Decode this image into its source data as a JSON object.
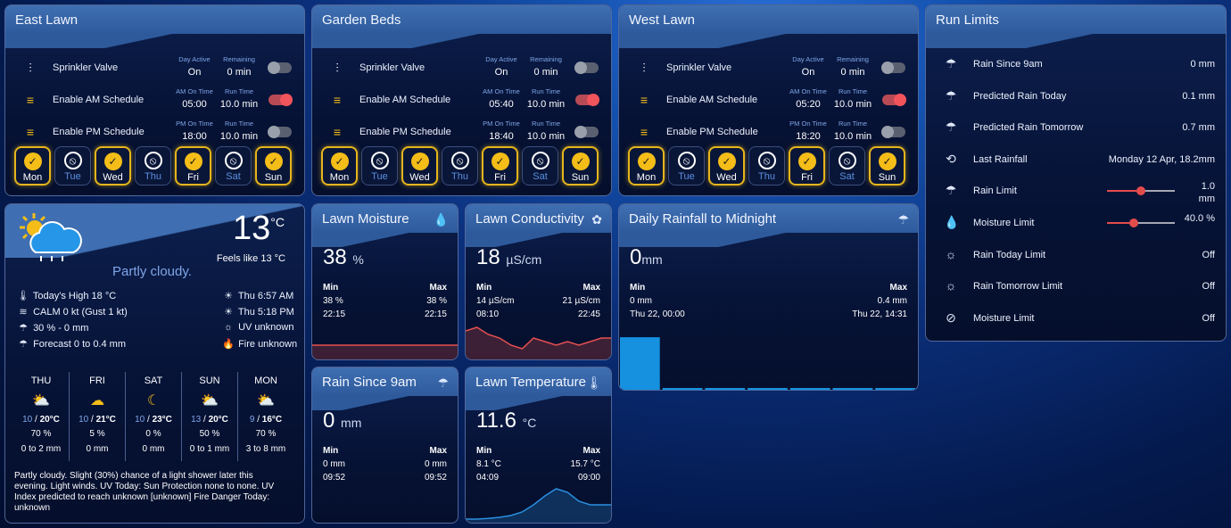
{
  "zones": [
    {
      "title": "East Lawn",
      "rows": [
        {
          "label": "Sprinkler Valve",
          "col1_title": "Day Active",
          "col1_value": "On",
          "col2_title": "Remaining",
          "col2_value": "0 min",
          "toggle": false
        },
        {
          "label": "Enable AM Schedule",
          "col1_title": "AM On Time",
          "col1_value": "05:00",
          "col2_title": "Run Time",
          "col2_value": "10.0 min",
          "toggle": true
        },
        {
          "label": "Enable PM Schedule",
          "col1_title": "PM On Time",
          "col1_value": "18:00",
          "col2_title": "Run Time",
          "col2_value": "10.0 min",
          "toggle": false
        }
      ],
      "days": [
        {
          "label": "Mon",
          "on": true
        },
        {
          "label": "Tue",
          "on": false
        },
        {
          "label": "Wed",
          "on": true
        },
        {
          "label": "Thu",
          "on": false
        },
        {
          "label": "Fri",
          "on": true
        },
        {
          "label": "Sat",
          "on": false
        },
        {
          "label": "Sun",
          "on": true
        }
      ]
    },
    {
      "title": "Garden Beds",
      "rows": [
        {
          "label": "Sprinkler Valve",
          "col1_title": "Day Active",
          "col1_value": "On",
          "col2_title": "Remaining",
          "col2_value": "0 min",
          "toggle": false
        },
        {
          "label": "Enable AM Schedule",
          "col1_title": "AM On Time",
          "col1_value": "05:40",
          "col2_title": "Run Time",
          "col2_value": "10.0 min",
          "toggle": true
        },
        {
          "label": "Enable PM Schedule",
          "col1_title": "PM On Time",
          "col1_value": "18:40",
          "col2_title": "Run Time",
          "col2_value": "10.0 min",
          "toggle": false
        }
      ],
      "days": [
        {
          "label": "Mon",
          "on": true
        },
        {
          "label": "Tue",
          "on": false
        },
        {
          "label": "Wed",
          "on": true
        },
        {
          "label": "Thu",
          "on": false
        },
        {
          "label": "Fri",
          "on": true
        },
        {
          "label": "Sat",
          "on": false
        },
        {
          "label": "Sun",
          "on": true
        }
      ]
    },
    {
      "title": "West Lawn",
      "rows": [
        {
          "label": "Sprinkler Valve",
          "col1_title": "Day Active",
          "col1_value": "On",
          "col2_title": "Remaining",
          "col2_value": "0 min",
          "toggle": false
        },
        {
          "label": "Enable AM Schedule",
          "col1_title": "AM On Time",
          "col1_value": "05:20",
          "col2_title": "Run Time",
          "col2_value": "10.0 min",
          "toggle": true
        },
        {
          "label": "Enable PM Schedule",
          "col1_title": "PM On Time",
          "col1_value": "18:20",
          "col2_title": "Run Time",
          "col2_value": "10.0 min",
          "toggle": false
        }
      ],
      "days": [
        {
          "label": "Mon",
          "on": true
        },
        {
          "label": "Tue",
          "on": false
        },
        {
          "label": "Wed",
          "on": true
        },
        {
          "label": "Thu",
          "on": false
        },
        {
          "label": "Fri",
          "on": true
        },
        {
          "label": "Sat",
          "on": false
        },
        {
          "label": "Sun",
          "on": true
        }
      ]
    }
  ],
  "run_limits": {
    "title": "Run Limits",
    "rows": [
      {
        "label": "Rain Since 9am",
        "value": "0 mm",
        "icon": "rain-icon"
      },
      {
        "label": "Predicted Rain Today",
        "value": "0.1 mm",
        "icon": "rain-icon"
      },
      {
        "label": "Predicted Rain Tomorrow",
        "value": "0.7 mm",
        "icon": "rain-icon"
      },
      {
        "label": "Last Rainfall",
        "value": "Monday 12 Apr, 18.2mm",
        "icon": "history-icon"
      },
      {
        "label": "Rain Limit",
        "value": "1.0 mm",
        "icon": "rain-icon",
        "slider": 0.5
      },
      {
        "label": "Moisture Limit",
        "value": "40.0 %",
        "icon": "water-drop-icon",
        "slider": 0.4
      },
      {
        "label": "Rain Today Limit",
        "value": "Off",
        "icon": "sun-icon"
      },
      {
        "label": "Rain Tomorrow Limit",
        "value": "Off",
        "icon": "sun-icon"
      },
      {
        "label": "Moisture Limit",
        "value": "Off",
        "icon": "water-off-icon"
      }
    ]
  },
  "weather": {
    "temp": "13",
    "temp_unit": "°C",
    "feels_like": "Feels like 13 °C",
    "condition": "Partly cloudy.",
    "left": [
      {
        "icon": "thermometer-icon",
        "text": "Today's High 18 °C"
      },
      {
        "icon": "wind-icon",
        "text": "CALM 0 kt (Gust 1 kt)"
      },
      {
        "icon": "rain-icon",
        "text": "30 % - 0 mm"
      },
      {
        "icon": "rain-icon",
        "text": "Forecast 0 to 0.4 mm"
      }
    ],
    "right": [
      {
        "icon": "sunrise-icon",
        "text": "Thu 6:57 AM"
      },
      {
        "icon": "sunset-icon",
        "text": "Thu 5:18 PM"
      },
      {
        "icon": "uv-icon",
        "text": "UV unknown"
      },
      {
        "icon": "fire-icon",
        "text": "Fire unknown"
      }
    ],
    "forecast": [
      {
        "day": "THU",
        "icon": "partly-cloudy-rain-icon",
        "lo": "10",
        "hi": "20°C",
        "pop": "70 %",
        "rain": "0 to 2 mm"
      },
      {
        "day": "FRI",
        "icon": "partly-cloudy-night-icon",
        "lo": "10",
        "hi": "21°C",
        "pop": "5 %",
        "rain": "0 mm"
      },
      {
        "day": "SAT",
        "icon": "moon-icon",
        "lo": "10",
        "hi": "23°C",
        "pop": "0 %",
        "rain": "0 mm"
      },
      {
        "day": "SUN",
        "icon": "partly-cloudy-rain-icon",
        "lo": "13",
        "hi": "20°C",
        "pop": "50 %",
        "rain": "0 to 1 mm"
      },
      {
        "day": "MON",
        "icon": "partly-cloudy-rain-icon",
        "lo": "9",
        "hi": "16°C",
        "pop": "70 %",
        "rain": "3 to 8 mm"
      }
    ],
    "summary": "Partly cloudy. Slight (30%) chance of a light shower later this evening. Light winds. UV Today: Sun Protection none to none. UV Index predicted to reach unknown [unknown] Fire Danger Today: unknown"
  },
  "sensors": [
    {
      "title": "Lawn Moisture",
      "icon": "water-drop-icon",
      "value": "38",
      "unit": "%",
      "min_label": "Min",
      "max_label": "Max",
      "min_value": "38 %",
      "max_value": "38 %",
      "min_time": "22:15",
      "max_time": "22:15",
      "color": "#e55050",
      "spark": [
        0.4,
        0.4,
        0.4,
        0.4,
        0.4,
        0.4,
        0.4,
        0.4,
        0.4,
        0.4
      ]
    },
    {
      "title": "Lawn Conductivity",
      "icon": "flower-icon",
      "value": "18",
      "unit": "µS/cm",
      "min_label": "Min",
      "max_label": "Max",
      "min_value": "14 µS/cm",
      "max_value": "21 µS/cm",
      "min_time": "08:10",
      "max_time": "22:45",
      "color": "#e55050",
      "spark": [
        0.8,
        0.9,
        0.7,
        0.6,
        0.4,
        0.3,
        0.6,
        0.5,
        0.4,
        0.5,
        0.4,
        0.5,
        0.6,
        0.6
      ]
    },
    {
      "title": "Rain Since 9am",
      "icon": "rain-icon",
      "value": "0",
      "unit": "mm",
      "min_label": "Min",
      "max_label": "Max",
      "min_value": "0 mm",
      "max_value": "0 mm",
      "min_time": "09:52",
      "max_time": "09:52",
      "color": "#2a8fe0",
      "spark": []
    },
    {
      "title": "Lawn Temperature",
      "icon": "thermometer-icon",
      "value": "11.6",
      "unit": "°C",
      "min_label": "Min",
      "max_label": "Max",
      "min_value": "8.1 °C",
      "max_value": "15.7 °C",
      "min_time": "04:09",
      "max_time": "09:00",
      "color": "#2a8fe0",
      "spark": [
        0.1,
        0.1,
        0.12,
        0.15,
        0.2,
        0.3,
        0.5,
        0.75,
        0.95,
        0.85,
        0.6,
        0.5,
        0.5,
        0.5
      ]
    }
  ],
  "rainfall": {
    "title": "Daily Rainfall to Midnight",
    "icon": "rain-icon",
    "value": "0",
    "unit": "mm",
    "min_label": "Min",
    "max_label": "Max",
    "min_value": "0 mm",
    "max_value": "0.4 mm",
    "min_time": "Thu 22, 00:00",
    "max_time": "Thu 22, 14:31"
  },
  "chart_data": {
    "type": "bar",
    "values": [
      0.4,
      0.02,
      0.02,
      0.02,
      0.02,
      0.02,
      0.02
    ],
    "ylim": [
      0,
      0.4
    ],
    "color": "#1591e0"
  }
}
